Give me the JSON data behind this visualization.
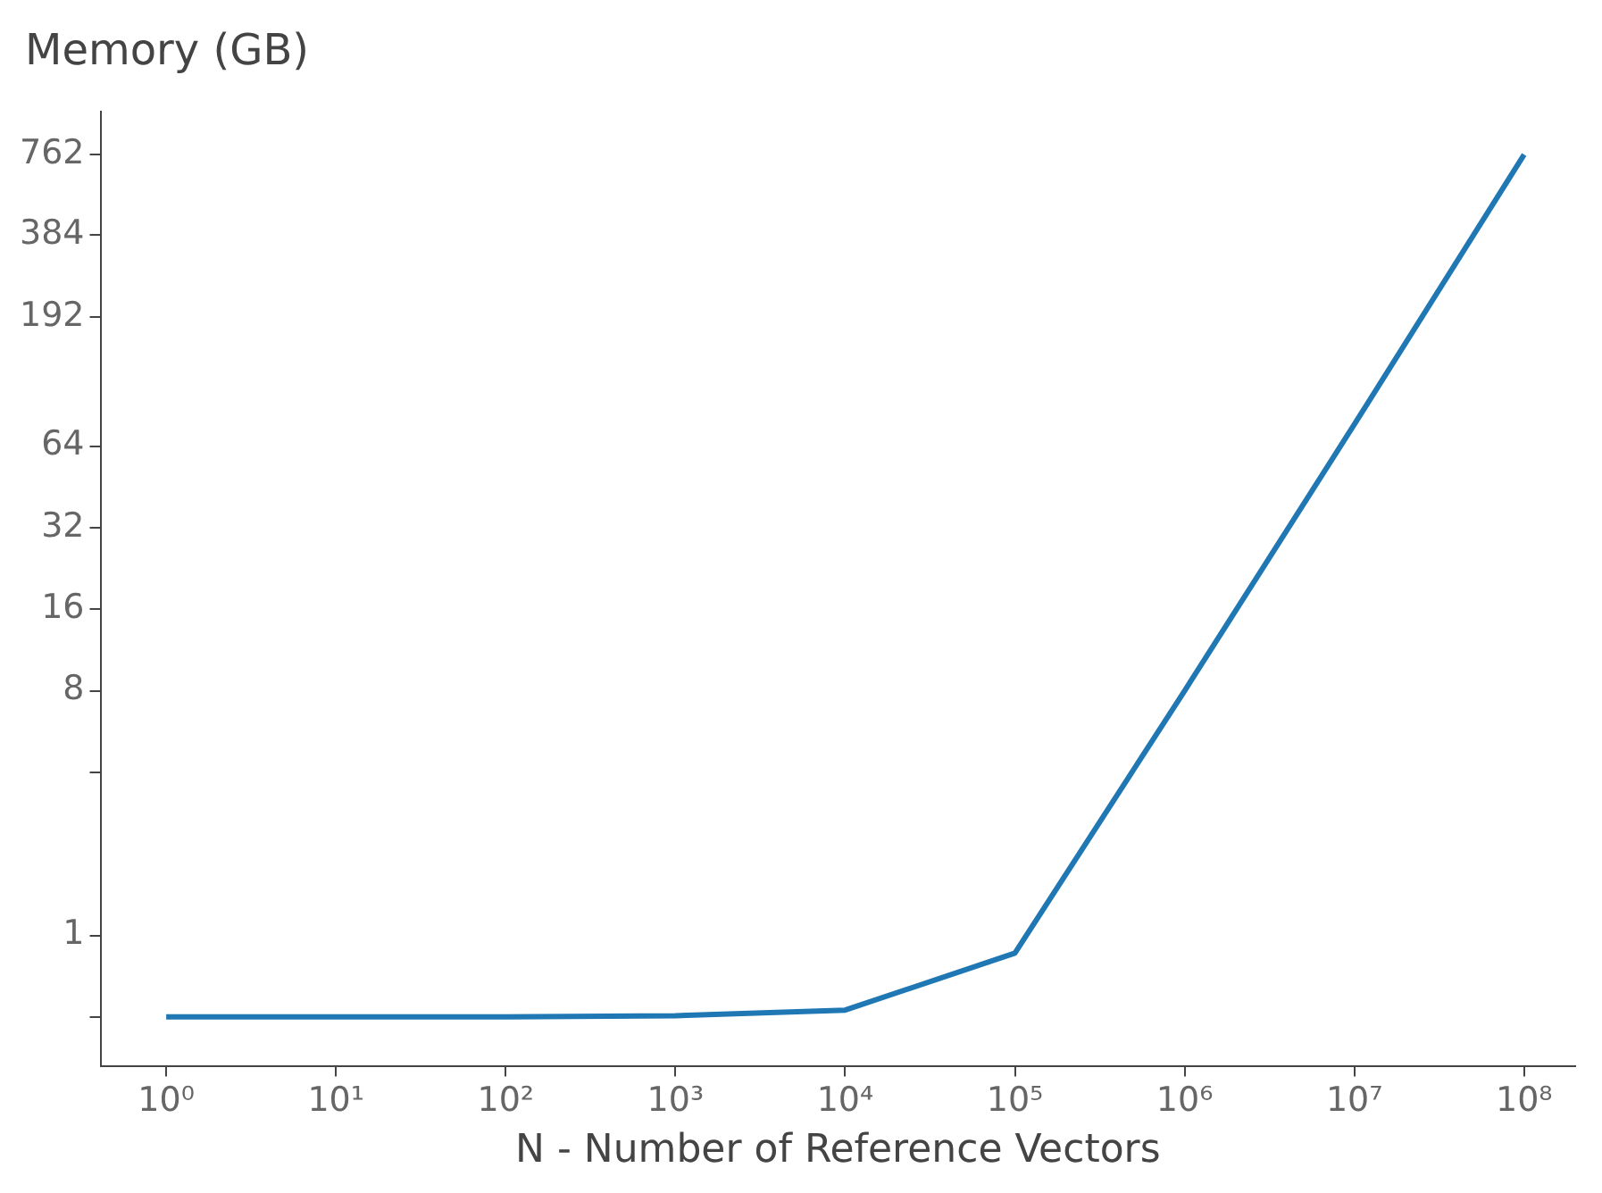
{
  "chart_data": {
    "type": "line",
    "xlabel": "N - Number of Reference Vectors",
    "ylabel": "Memory (GB)",
    "x": [
      1,
      10,
      100,
      1000,
      10000,
      100000,
      1000000,
      10000000,
      100000000
    ],
    "series": [
      {
        "color": "#1f77b4",
        "values": [
          0.5,
          0.5,
          0.5,
          0.505,
          0.53,
          0.86,
          8,
          77,
          762
        ]
      }
    ],
    "log": "xy",
    "xlim": [
      0.41,
      200000000
    ],
    "ylim": [
      0.33,
      1100
    ],
    "xticks": [
      {
        "value": 1,
        "label": "10⁰"
      },
      {
        "value": 10,
        "label": "10¹"
      },
      {
        "value": 100,
        "label": "10²"
      },
      {
        "value": 1000,
        "label": "10³"
      },
      {
        "value": 10000,
        "label": "10⁴"
      },
      {
        "value": 100000,
        "label": "10⁵"
      },
      {
        "value": 1000000,
        "label": "10⁶"
      },
      {
        "value": 10000000,
        "label": "10⁷"
      },
      {
        "value": 100000000,
        "label": "10⁸"
      }
    ],
    "yticks": [
      {
        "value": 0.5,
        "label": null
      },
      1,
      {
        "value": 4,
        "label": null
      },
      8,
      16,
      32,
      64,
      192,
      384,
      762
    ],
    "grid": false,
    "legend": false,
    "marker": "none",
    "line_style": "solid"
  }
}
